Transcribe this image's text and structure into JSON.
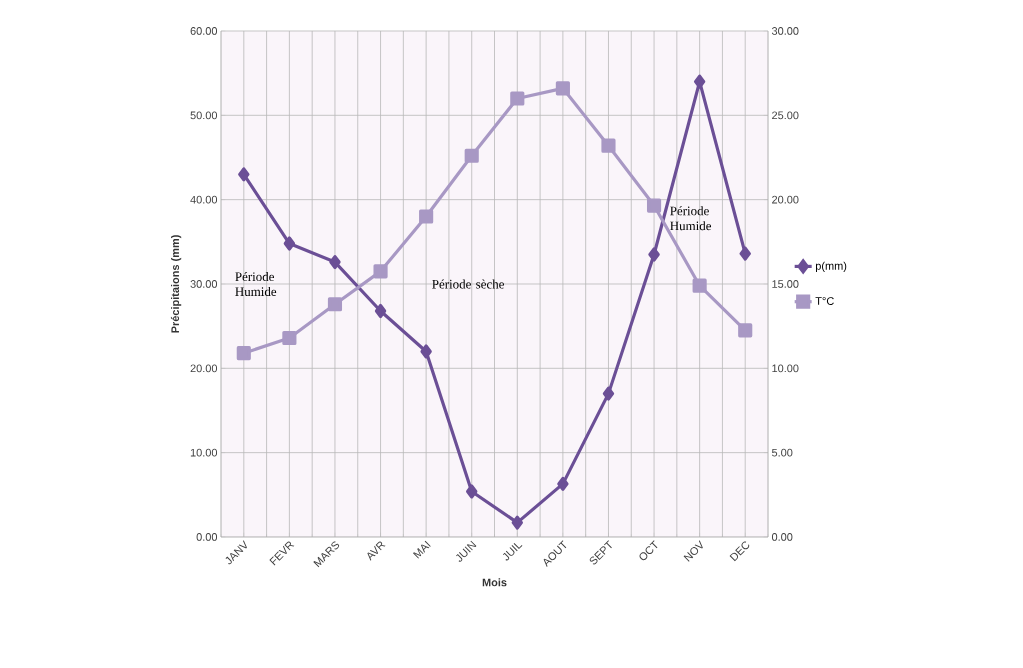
{
  "chart_data": {
    "type": "line",
    "xlabel": "Mois",
    "ylabel": "Précipitaions (mm)",
    "categories": [
      "JANV",
      "FEVR",
      "MARS",
      "AVR",
      "MAI",
      "JUIN",
      "JUIL",
      "AOUT",
      "SEPT",
      "OCT",
      "NOV",
      "DEC"
    ],
    "series": [
      {
        "name": "p(mm)",
        "color": "#6b4f96",
        "marker": "diamond",
        "values": [
          43.0,
          34.8,
          32.6,
          26.8,
          22.0,
          5.4,
          1.7,
          6.3,
          17.0,
          33.5,
          54.0,
          33.6
        ]
      },
      {
        "name": "T°C",
        "color": "#a898c4",
        "marker": "square",
        "axis": "y2",
        "values": [
          10.9,
          11.8,
          13.8,
          15.75,
          19.0,
          22.6,
          26.0,
          26.6,
          23.2,
          19.65,
          14.9,
          12.25
        ]
      }
    ],
    "ylim": [
      0,
      60
    ],
    "yticks": [
      {
        "value": 0,
        "label": "0.00"
      },
      {
        "value": 10,
        "label": "10.00"
      },
      {
        "value": 20,
        "label": "20.00"
      },
      {
        "value": 30,
        "label": "30.00"
      },
      {
        "value": 40,
        "label": "40.00"
      },
      {
        "value": 50,
        "label": "50.00"
      },
      {
        "value": 60,
        "label": "60.00"
      }
    ],
    "y2lim": [
      0,
      30
    ],
    "y2ticks": [
      {
        "value": 0,
        "label": "0.00"
      },
      {
        "value": 5,
        "label": "5.00"
      },
      {
        "value": 10,
        "label": "10.00"
      },
      {
        "value": 15,
        "label": "15.00"
      },
      {
        "value": 20,
        "label": "20.00"
      },
      {
        "value": 25,
        "label": "25.00"
      },
      {
        "value": 30,
        "label": "30.00"
      }
    ],
    "grid": true,
    "legend": "right",
    "line_style": "solid",
    "annotations": [
      "Période Humide",
      "Période sèche",
      "Période Humide"
    ]
  }
}
